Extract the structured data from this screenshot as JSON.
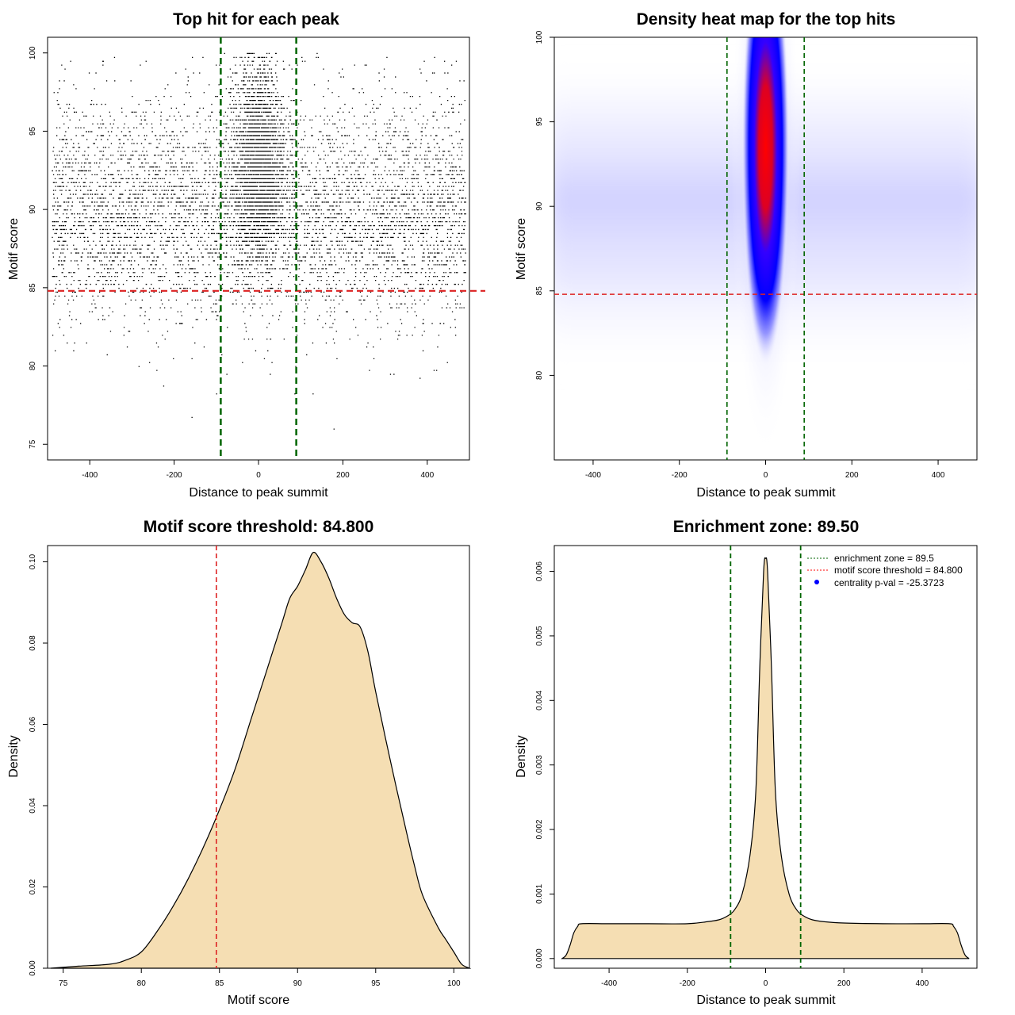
{
  "chart_data": [
    {
      "type": "scatter",
      "title": "Top hit for each peak",
      "xlabel": "Distance to peak summit",
      "ylabel": "Motif score",
      "xlim": [
        -500,
        500
      ],
      "ylim": [
        74,
        101
      ],
      "xticks": [
        -400,
        -200,
        0,
        200,
        400
      ],
      "yticks": [
        75,
        80,
        85,
        90,
        95,
        100
      ],
      "threshold": 84.8,
      "zone": [
        -89.5,
        89.5
      ],
      "background_band": {
        "x_range": [
          -490,
          490
        ],
        "y_peak": 90,
        "y_sd": 3.5
      },
      "central_cluster": {
        "x_center": 0,
        "x_sd": 30,
        "y_peak": 93,
        "y_sd": 3
      }
    },
    {
      "type": "heatmap",
      "title": "Density heat map for the top hits",
      "xlabel": "Distance to peak summit",
      "ylabel": "Motif score",
      "xlim": [
        -490,
        490
      ],
      "ylim": [
        75,
        100
      ],
      "xticks": [
        -400,
        -200,
        0,
        200,
        400
      ],
      "yticks": [
        80,
        85,
        90,
        95,
        100
      ],
      "threshold": 84.8,
      "zone": [
        -89.5,
        89.5
      ],
      "hotspot": {
        "x": 0,
        "y": 93.5
      },
      "colors": {
        "low": "#ffffff",
        "mid": "#0000ff",
        "high": "#ff0000"
      }
    },
    {
      "type": "area",
      "title": "Motif score threshold: 84.800",
      "xlabel": "Motif score",
      "ylabel": "Density",
      "xlim": [
        74,
        101
      ],
      "ylim": [
        0,
        0.104
      ],
      "xticks": [
        75,
        80,
        85,
        90,
        95,
        100
      ],
      "yticks": [
        0.0,
        0.02,
        0.04,
        0.06,
        0.08,
        0.1
      ],
      "ytick_labels": [
        "0.00",
        "0.02",
        "0.04",
        "0.06",
        "0.08",
        "0.10"
      ],
      "threshold": 84.8,
      "x": [
        74.2,
        76,
        78,
        79,
        80,
        81,
        82,
        83,
        84,
        85,
        86,
        87,
        88,
        89,
        89.5,
        90,
        90.5,
        91,
        91.5,
        92,
        92.5,
        93,
        93.5,
        94,
        94.5,
        95,
        96,
        97,
        97.5,
        98,
        99,
        99.5,
        100,
        100.5,
        101
      ],
      "y": [
        0,
        0.0005,
        0.001,
        0.002,
        0.004,
        0.009,
        0.015,
        0.022,
        0.03,
        0.039,
        0.049,
        0.061,
        0.073,
        0.085,
        0.091,
        0.094,
        0.098,
        0.1023,
        0.1,
        0.096,
        0.091,
        0.087,
        0.085,
        0.084,
        0.078,
        0.068,
        0.05,
        0.033,
        0.025,
        0.018,
        0.01,
        0.007,
        0.004,
        0.001,
        0
      ],
      "fill": "#f5deb3"
    },
    {
      "type": "area",
      "title": "Enrichment zone: 89.50",
      "xlabel": "Distance to peak summit",
      "ylabel": "Density",
      "xlim": [
        -540,
        540
      ],
      "ylim": [
        -0.00015,
        0.0064
      ],
      "xticks": [
        -400,
        -200,
        0,
        200,
        400
      ],
      "yticks": [
        0,
        0.001,
        0.002,
        0.003,
        0.004,
        0.005,
        0.006
      ],
      "ytick_labels": [
        "0.000",
        "0.001",
        "0.002",
        "0.003",
        "0.004",
        "0.005",
        "0.006"
      ],
      "zone": [
        -89.5,
        89.5
      ],
      "x": [
        -520,
        -510,
        -500,
        -490,
        -480,
        -470,
        -400,
        -300,
        -200,
        -150,
        -120,
        -100,
        -80,
        -60,
        -40,
        -25,
        -15,
        -5,
        0,
        5,
        15,
        25,
        40,
        60,
        80,
        100,
        120,
        150,
        200,
        300,
        400,
        470,
        480,
        490,
        500,
        510,
        520
      ],
      "y": [
        0,
        5e-05,
        0.0002,
        0.0004,
        0.0005,
        0.00054,
        0.00054,
        0.00054,
        0.00054,
        0.00057,
        0.0006,
        0.00065,
        0.00075,
        0.001,
        0.0016,
        0.0026,
        0.0045,
        0.006,
        0.0062,
        0.006,
        0.0045,
        0.0026,
        0.0016,
        0.001,
        0.00075,
        0.00065,
        0.0006,
        0.00057,
        0.00055,
        0.00054,
        0.00054,
        0.00054,
        0.0005,
        0.0004,
        0.0002,
        5e-05,
        0
      ],
      "fill": "#f5deb3",
      "legend": {
        "position": "top-right",
        "entries": [
          {
            "label": "enrichment zone = 89.5",
            "color": "#006400",
            "style": "dotted"
          },
          {
            "label": "motif score threshold = 84.800",
            "color": "#ff0000",
            "style": "dotted"
          },
          {
            "label": "centrality p-val = -25.3723",
            "color": "#0000ff",
            "style": "point"
          }
        ]
      }
    }
  ]
}
